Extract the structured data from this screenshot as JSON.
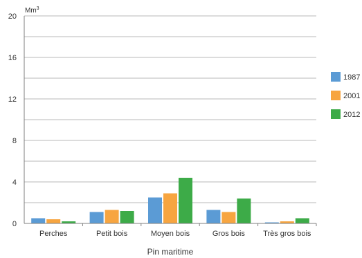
{
  "chart_data": {
    "type": "bar",
    "unit_label": "Mm",
    "unit_superscript": "3",
    "xlabel": "Pin maritime",
    "ylim": [
      0,
      20
    ],
    "yticks": [
      0,
      4,
      8,
      12,
      16,
      20
    ],
    "grid": true,
    "legend_position": "right",
    "categories": [
      "Perches",
      "Petit bois",
      "Moyen bois",
      "Gros bois",
      "Très gros bois"
    ],
    "series": [
      {
        "name": "1987",
        "color": "#5b9bd5",
        "values": [
          0.5,
          1.1,
          2.5,
          1.3,
          0.1
        ]
      },
      {
        "name": "2001",
        "color": "#f7a540",
        "values": [
          0.4,
          1.3,
          2.9,
          1.1,
          0.2
        ]
      },
      {
        "name": "2012",
        "color": "#3dab48",
        "values": [
          0.2,
          1.2,
          4.4,
          2.4,
          0.5
        ]
      }
    ]
  }
}
